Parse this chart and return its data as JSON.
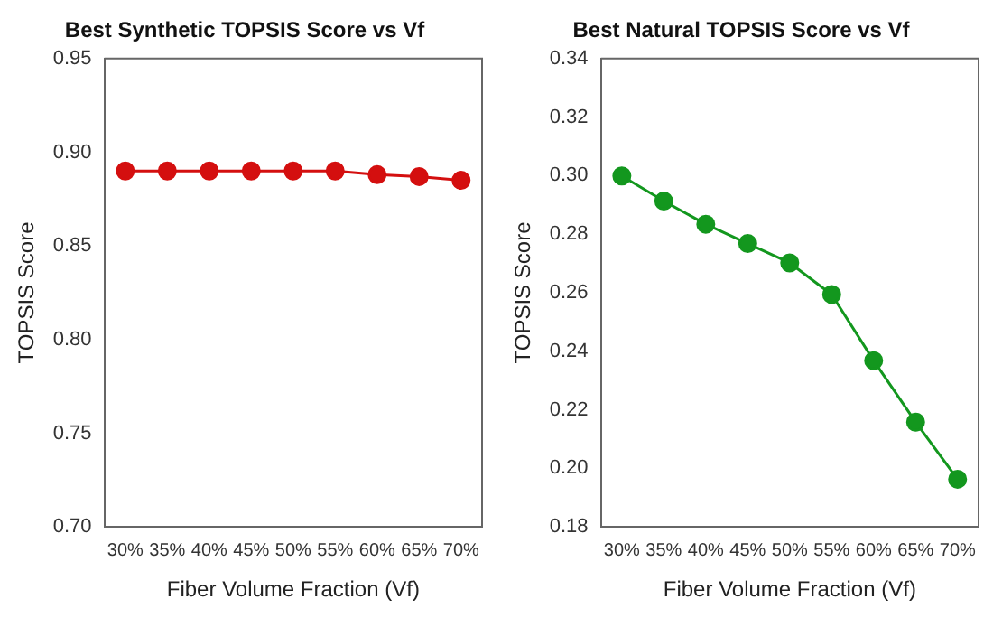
{
  "chart_data": [
    {
      "type": "line",
      "title": "Best Synthetic TOPSIS Score vs Vf",
      "xlabel": "Fiber Volume Fraction (Vf)",
      "ylabel": "TOPSIS Score",
      "categories": [
        "30%",
        "35%",
        "40%",
        "45%",
        "50%",
        "55%",
        "60%",
        "65%",
        "70%"
      ],
      "series": [
        {
          "color": "#d40f0f",
          "values": [
            0.89,
            0.89,
            0.89,
            0.89,
            0.89,
            0.89,
            0.888,
            0.887,
            0.885
          ]
        }
      ],
      "ylim": [
        0.7,
        0.95
      ],
      "yticks": [
        {
          "value": 0.7,
          "label": "0.70"
        },
        {
          "value": 0.75,
          "label": "0.75"
        },
        {
          "value": 0.8,
          "label": "0.80"
        },
        {
          "value": 0.85,
          "label": "0.85"
        },
        {
          "value": 0.9,
          "label": "0.90"
        },
        {
          "value": 0.95,
          "label": "0.95"
        }
      ],
      "grid": false,
      "legend": false,
      "marker": "circle",
      "line_style": "solid"
    },
    {
      "type": "line",
      "title": "Best Natural TOPSIS Score vs Vf",
      "xlabel": "Fiber Volume Fraction (Vf)",
      "ylabel": "TOPSIS Score",
      "categories": [
        "30%",
        "35%",
        "40%",
        "45%",
        "50%",
        "55%",
        "60%",
        "65%",
        "70%"
      ],
      "series": [
        {
          "color": "#13971e",
          "values": [
            0.2999,
            0.2913,
            0.2834,
            0.2768,
            0.2702,
            0.2594,
            0.2368,
            0.2158,
            0.1963
          ]
        }
      ],
      "ylim": [
        0.18,
        0.34
      ],
      "yticks": [
        {
          "value": 0.18,
          "label": "0.18"
        },
        {
          "value": 0.2,
          "label": "0.20"
        },
        {
          "value": 0.22,
          "label": "0.22"
        },
        {
          "value": 0.24,
          "label": "0.24"
        },
        {
          "value": 0.26,
          "label": "0.26"
        },
        {
          "value": 0.28,
          "label": "0.28"
        },
        {
          "value": 0.3,
          "label": "0.30"
        },
        {
          "value": 0.32,
          "label": "0.32"
        },
        {
          "value": 0.34,
          "label": "0.34"
        }
      ],
      "grid": false,
      "legend": false,
      "marker": "circle",
      "line_style": "solid"
    }
  ]
}
